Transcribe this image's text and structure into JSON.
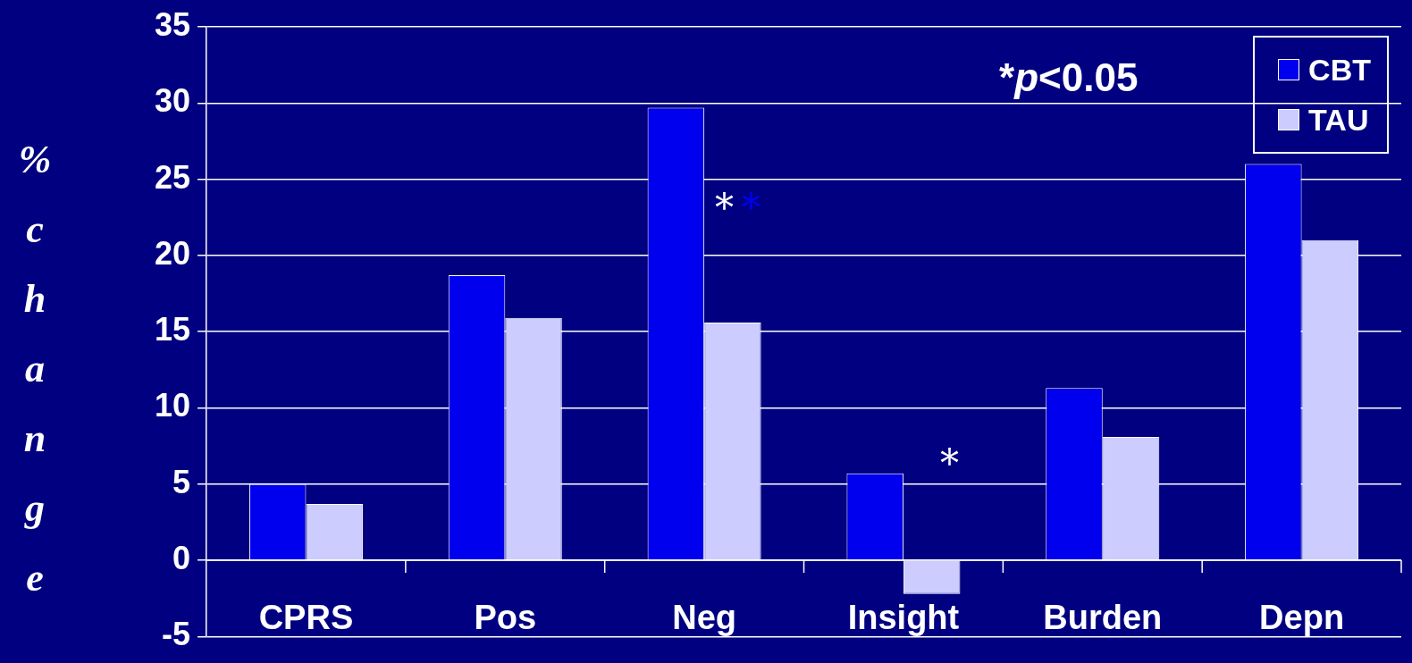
{
  "chart_data": {
    "type": "bar",
    "ylabel": "% change",
    "categories": [
      "CPRS",
      "Pos",
      "Neg",
      "Insight",
      "Burden",
      "Depn"
    ],
    "series": [
      {
        "name": "CBT",
        "color": "#0000ee",
        "values": [
          5.0,
          18.7,
          29.7,
          5.7,
          11.3,
          26.0
        ]
      },
      {
        "name": "TAU",
        "color": "#ccccff",
        "values": [
          3.7,
          15.9,
          15.6,
          -2.2,
          8.1,
          21.0
        ]
      }
    ],
    "ylim": [
      -5,
      35
    ],
    "yticks": [
      -5,
      0,
      5,
      10,
      15,
      20,
      25,
      30,
      35
    ],
    "grid": "y",
    "legend": "top right",
    "annotations": [
      "*p<0.05",
      "*",
      "*",
      "*"
    ]
  }
}
